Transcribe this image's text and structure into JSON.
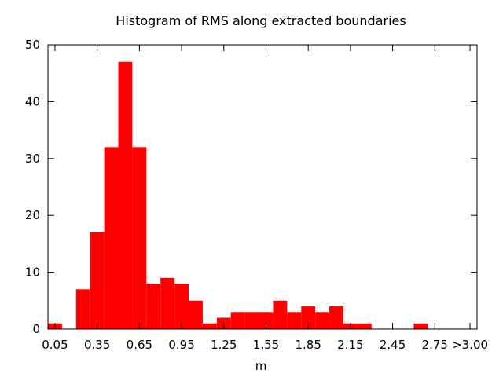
{
  "chart_data": {
    "type": "bar",
    "title": "Histogram of RMS along extracted boundaries",
    "xlabel": "m",
    "ylabel": "",
    "ylim": [
      0,
      50
    ],
    "yticks": [
      0,
      10,
      20,
      30,
      40,
      50
    ],
    "xlim": [
      0,
      3.05
    ],
    "xticks": [
      {
        "value": 0.05,
        "label": "0.05"
      },
      {
        "value": 0.35,
        "label": "0.35"
      },
      {
        "value": 0.65,
        "label": "0.65"
      },
      {
        "value": 0.95,
        "label": "0.95"
      },
      {
        "value": 1.25,
        "label": "1.25"
      },
      {
        "value": 1.55,
        "label": "1.55"
      },
      {
        "value": 1.85,
        "label": "1.85"
      },
      {
        "value": 2.15,
        "label": "2.15"
      },
      {
        "value": 2.45,
        "label": "2.45"
      },
      {
        "value": 2.75,
        "label": "2.75"
      },
      {
        "value": 3.0,
        "label": ">3.00"
      }
    ],
    "bin_width": 0.1,
    "bins": [
      {
        "x": 0.05,
        "value": 1
      },
      {
        "x": 0.15,
        "value": 0
      },
      {
        "x": 0.25,
        "value": 7
      },
      {
        "x": 0.35,
        "value": 17
      },
      {
        "x": 0.45,
        "value": 32
      },
      {
        "x": 0.55,
        "value": 47
      },
      {
        "x": 0.65,
        "value": 32
      },
      {
        "x": 0.75,
        "value": 8
      },
      {
        "x": 0.85,
        "value": 9
      },
      {
        "x": 0.95,
        "value": 8
      },
      {
        "x": 1.05,
        "value": 5
      },
      {
        "x": 1.15,
        "value": 1
      },
      {
        "x": 1.25,
        "value": 2
      },
      {
        "x": 1.35,
        "value": 3
      },
      {
        "x": 1.45,
        "value": 3
      },
      {
        "x": 1.55,
        "value": 3
      },
      {
        "x": 1.65,
        "value": 5
      },
      {
        "x": 1.75,
        "value": 3
      },
      {
        "x": 1.85,
        "value": 4
      },
      {
        "x": 1.95,
        "value": 3
      },
      {
        "x": 2.05,
        "value": 4
      },
      {
        "x": 2.15,
        "value": 1
      },
      {
        "x": 2.25,
        "value": 1
      },
      {
        "x": 2.35,
        "value": 0
      },
      {
        "x": 2.45,
        "value": 0
      },
      {
        "x": 2.55,
        "value": 0
      },
      {
        "x": 2.65,
        "value": 1
      },
      {
        "x": 2.75,
        "value": 0
      },
      {
        "x": 2.85,
        "value": 0
      },
      {
        "x": 2.95,
        "value": 0
      }
    ],
    "bar_color": "#ff0000",
    "grid": false,
    "legend": "none"
  }
}
